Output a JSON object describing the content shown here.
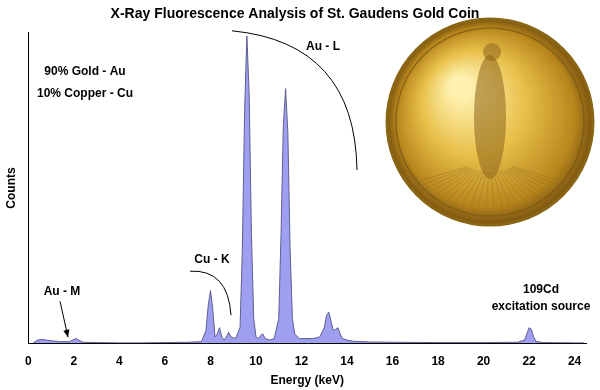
{
  "chart_data": {
    "type": "area",
    "title": "X-Ray Fluorescence Analysis of St. Gaudens Gold Coin",
    "x_label": "Energy (keV)",
    "y_label": "Counts",
    "x": [
      0.2,
      0.4,
      0.6,
      0.8,
      1.0,
      1.4,
      1.8,
      2.0,
      2.1,
      2.2,
      2.4,
      3.0,
      4.0,
      5.0,
      6.0,
      7.0,
      7.6,
      7.8,
      7.9,
      8.0,
      8.1,
      8.2,
      8.3,
      8.4,
      8.5,
      8.6,
      8.7,
      8.8,
      8.9,
      9.1,
      9.3,
      9.4,
      9.5,
      9.6,
      9.7,
      9.8,
      9.9,
      10.0,
      10.1,
      10.2,
      10.3,
      10.4,
      10.6,
      10.8,
      11.0,
      11.1,
      11.2,
      11.3,
      11.4,
      11.5,
      11.6,
      11.7,
      11.9,
      12.2,
      12.5,
      12.8,
      13.0,
      13.1,
      13.2,
      13.3,
      13.4,
      13.5,
      13.6,
      13.7,
      13.8,
      14.0,
      14.3,
      15.0,
      16.0,
      18.0,
      20.0,
      21.5,
      21.8,
      21.9,
      22.0,
      22.1,
      22.2,
      22.3,
      22.6,
      24.0,
      24.4
    ],
    "values": [
      0,
      1,
      1.2,
      1,
      0.8,
      0.5,
      0.5,
      1.2,
      1.5,
      1,
      0.3,
      0.2,
      0.1,
      0.1,
      0.2,
      0.3,
      0.5,
      4,
      12,
      17,
      11,
      2,
      3,
      5,
      2,
      1,
      2,
      3.5,
      2,
      1.5,
      5,
      30,
      75,
      99,
      80,
      35,
      8,
      2,
      1.5,
      2.5,
      3,
      1.5,
      1,
      1.5,
      8,
      35,
      70,
      82,
      68,
      30,
      8,
      3,
      1.5,
      1.5,
      1.5,
      2,
      5,
      9,
      10,
      7,
      4,
      4.5,
      5,
      3,
      1.5,
      1,
      0.6,
      0.4,
      0.3,
      0.2,
      0.2,
      0.3,
      1,
      3,
      5,
      4.5,
      2,
      0.6,
      0.2,
      0.1,
      0.1
    ],
    "color": "#9f9ff2",
    "xlim": [
      0,
      24.5
    ],
    "xticks": [
      0,
      2,
      4,
      6,
      8,
      10,
      12,
      14,
      16,
      18,
      20,
      22,
      24
    ],
    "ylim": [
      0,
      100
    ],
    "tick_labels": "x",
    "grid": false,
    "annotations": [
      "90% Gold - Au",
      "10% Copper - Cu",
      "Au - L",
      "Cu - K",
      "Au - M",
      "109Cd",
      "excitation source"
    ]
  }
}
